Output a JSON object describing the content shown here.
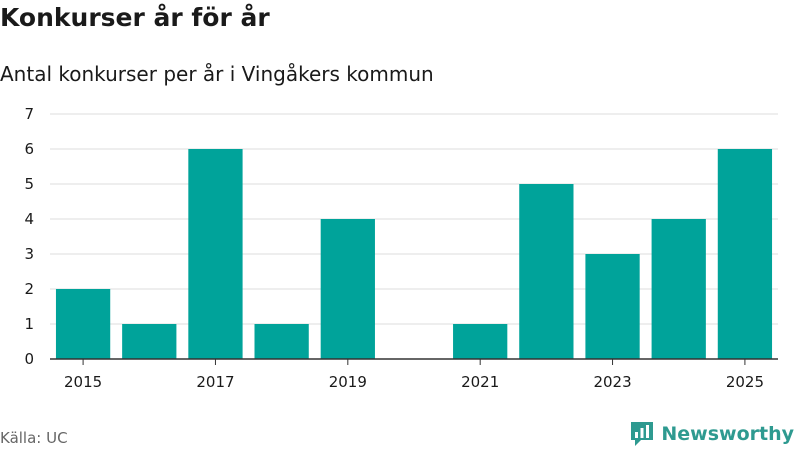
{
  "header": {
    "title": "Konkurser år för år",
    "subtitle": "Antal konkurser per år i Vingåkers kommun"
  },
  "footer": {
    "source": "Källa: UC",
    "brand": "Newsworthy"
  },
  "colors": {
    "bar": "#00a39a",
    "grid": "#dddddd",
    "axis": "#333333",
    "brand": "#2e9a90"
  },
  "icons": {
    "brand_logo": "bar-chart-chat-icon"
  },
  "chart_data": {
    "type": "bar",
    "title": "Konkurser år för år",
    "subtitle": "Antal konkurser per år i Vingåkers kommun",
    "categories": [
      "2015",
      "2016",
      "2017",
      "2018",
      "2019",
      "2020",
      "2021",
      "2022",
      "2023",
      "2024",
      "2025"
    ],
    "values": [
      2,
      1,
      6,
      1,
      4,
      0,
      1,
      5,
      3,
      4,
      6
    ],
    "x_tick_labels": [
      "2015",
      "2017",
      "2019",
      "2021",
      "2023",
      "2025"
    ],
    "y_ticks": [
      0,
      1,
      2,
      3,
      4,
      5,
      6,
      7
    ],
    "ylim": [
      0,
      7
    ],
    "xlabel": "",
    "ylabel": "",
    "grid": true,
    "legend": "none"
  }
}
